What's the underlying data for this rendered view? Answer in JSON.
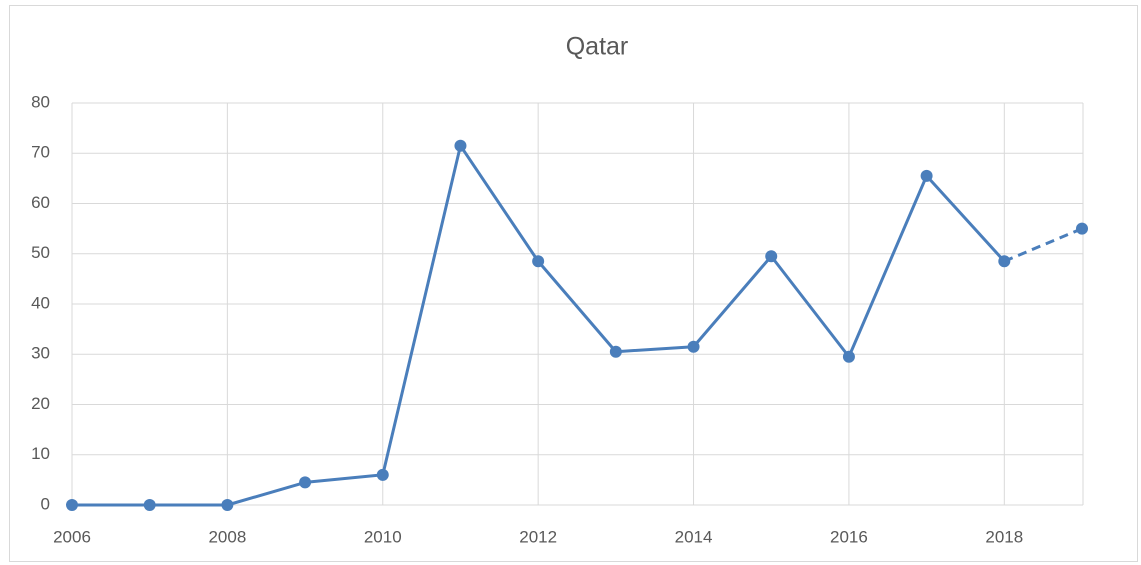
{
  "chart_data": {
    "type": "line",
    "title": "Qatar",
    "x": [
      2006,
      2007,
      2008,
      2009,
      2010,
      2011,
      2012,
      2013,
      2014,
      2015,
      2016,
      2017,
      2018,
      2019
    ],
    "series": [
      {
        "name": "Qatar",
        "color": "#4a7ebb",
        "values": [
          0,
          0,
          0,
          4.5,
          6,
          71.5,
          48.5,
          30.5,
          31.5,
          49.5,
          29.5,
          65.5,
          48.5,
          55
        ]
      }
    ],
    "dashed_after": 2018,
    "xlim": [
      2006,
      2019
    ],
    "xticks": [
      2006,
      2008,
      2010,
      2012,
      2014,
      2016,
      2018
    ],
    "ylim": [
      0,
      80
    ],
    "yticks": [
      0,
      10,
      20,
      30,
      40,
      50,
      60,
      70,
      80
    ],
    "grid": true
  }
}
